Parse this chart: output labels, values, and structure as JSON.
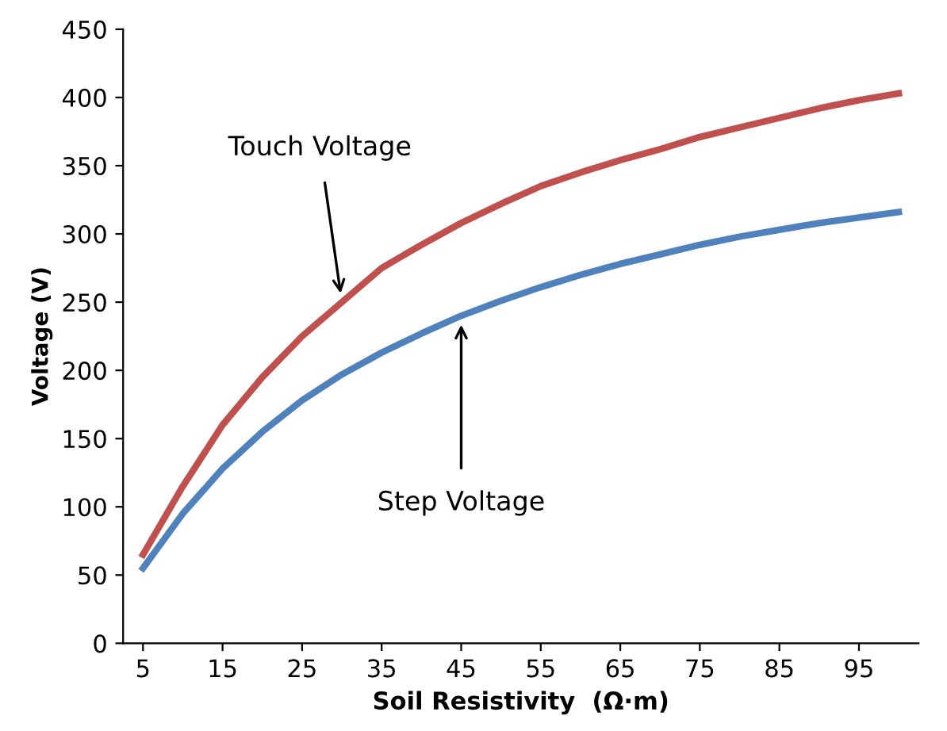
{
  "chart_data": {
    "type": "line",
    "xlabel": "Soil Resistivity  (Ω·m)",
    "ylabel": "Voltage (V)",
    "x": [
      5,
      10,
      15,
      20,
      25,
      30,
      35,
      40,
      45,
      50,
      55,
      60,
      65,
      70,
      75,
      80,
      85,
      90,
      95,
      100
    ],
    "xlim": [
      2.5,
      102.5
    ],
    "xticks": [
      5,
      15,
      25,
      35,
      45,
      55,
      65,
      75,
      85,
      95
    ],
    "ylim": [
      0,
      450
    ],
    "yticks": [
      0,
      50,
      100,
      150,
      200,
      250,
      300,
      350,
      400,
      450
    ],
    "grid": false,
    "legend": false,
    "marker": "none",
    "line_style": "solid",
    "series": [
      {
        "color": "#c0504d",
        "values": [
          65,
          115,
          160,
          195,
          225,
          250,
          275,
          292,
          308,
          322,
          335,
          345,
          354,
          362,
          371,
          378,
          385,
          392,
          398,
          403
        ]
      },
      {
        "color": "#4f81bd",
        "values": [
          55,
          95,
          128,
          155,
          178,
          197,
          213,
          227,
          240,
          251,
          261,
          270,
          278,
          285,
          292,
          298,
          303,
          308,
          312,
          316
        ]
      }
    ],
    "annotations": [
      {
        "text": "Touch Voltage",
        "x": 30,
        "y": 250
      },
      {
        "text": "Step Voltage",
        "x": 45,
        "y": 240
      }
    ]
  }
}
